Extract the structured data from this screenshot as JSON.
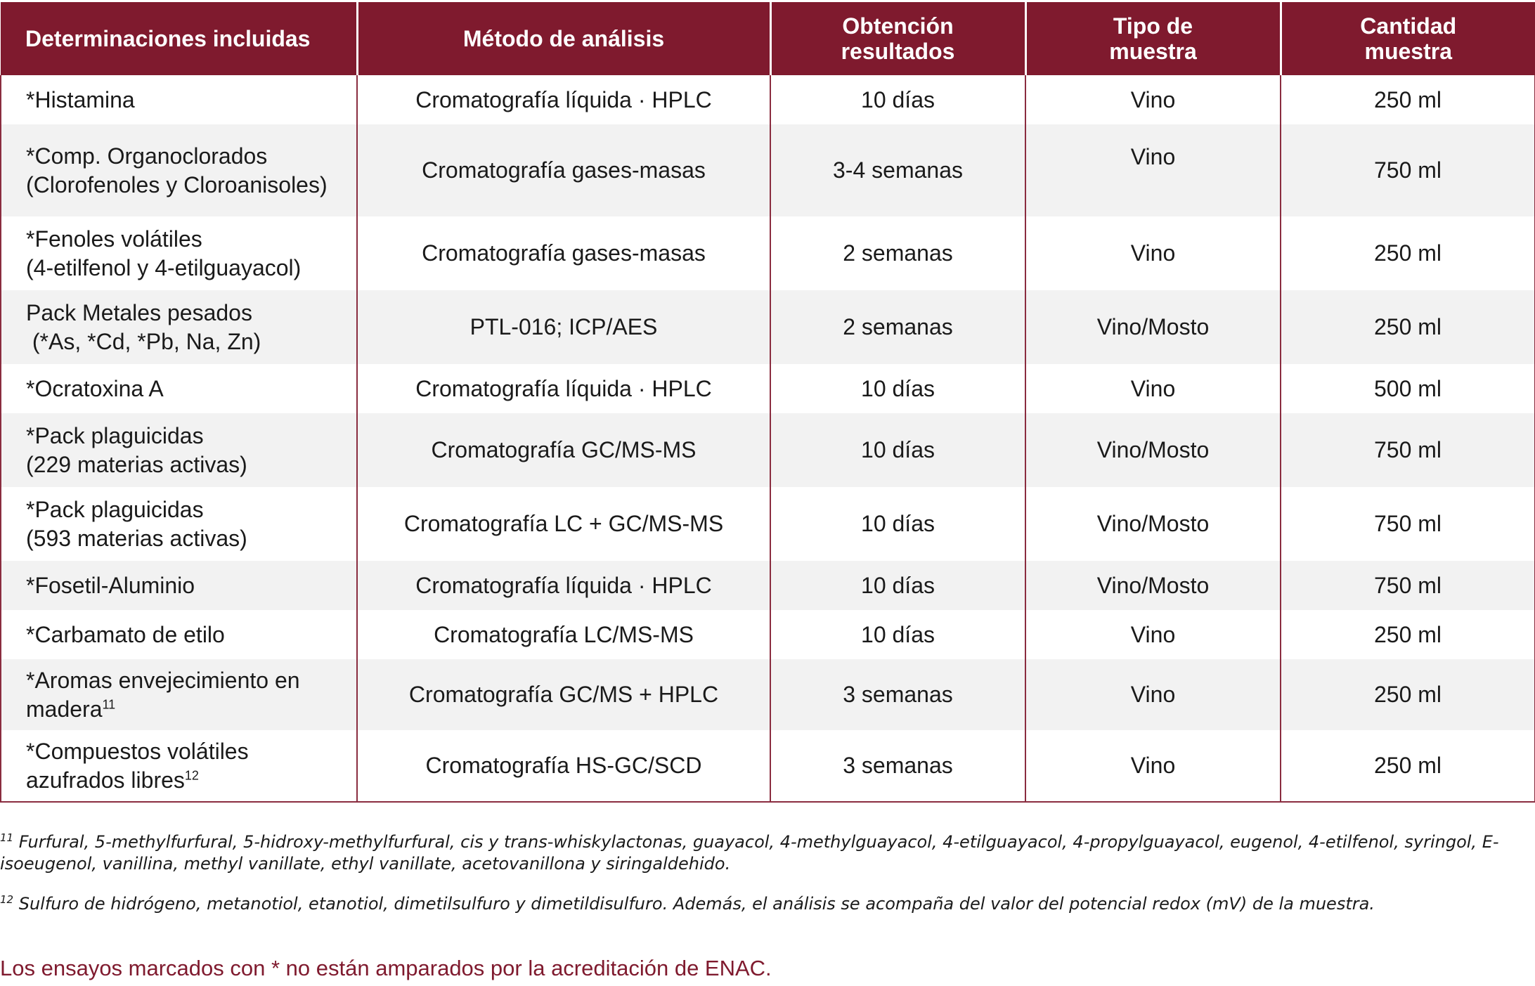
{
  "table": {
    "headers": [
      [
        "Determinaciones incluidas"
      ],
      [
        "Método de análisis"
      ],
      [
        "Obtención",
        "resultados"
      ],
      [
        "Tipo de",
        "muestra"
      ],
      [
        "Cantidad",
        "muestra"
      ]
    ],
    "rows": [
      {
        "det": [
          "*Histamina"
        ],
        "fn": "",
        "method": "Cromatografía líquida · HPLC",
        "time": "10 días",
        "type": "Vino",
        "qty": "250 ml"
      },
      {
        "det": [
          "*Comp. Organoclorados",
          "(Clorofenoles y Cloroanisoles)"
        ],
        "fn": "",
        "method": "Cromatografía gases-masas",
        "time": "3-4 semanas",
        "type": "Vino",
        "qty": "750 ml"
      },
      {
        "det": [
          "*Fenoles volátiles",
          "(4-etilfenol y 4-etilguayacol)"
        ],
        "fn": "",
        "method": "Cromatografía gases-masas",
        "time": "2 semanas",
        "type": "Vino",
        "qty": "250 ml"
      },
      {
        "det": [
          "Pack Metales pesados",
          " (*As, *Cd, *Pb, Na, Zn)"
        ],
        "fn": "",
        "method": "PTL-016; ICP/AES",
        "time": "2 semanas",
        "type": "Vino/Mosto",
        "qty": "250 ml"
      },
      {
        "det": [
          "*Ocratoxina A"
        ],
        "fn": "",
        "method": "Cromatografía líquida · HPLC",
        "time": "10 días",
        "type": "Vino",
        "qty": "500 ml"
      },
      {
        "det": [
          "*Pack plaguicidas",
          "(229 materias activas)"
        ],
        "fn": "",
        "method": "Cromatografía GC/MS-MS",
        "time": "10 días",
        "type": "Vino/Mosto",
        "qty": "750 ml"
      },
      {
        "det": [
          "*Pack plaguicidas",
          "(593 materias activas)"
        ],
        "fn": "",
        "method": "Cromatografía LC + GC/MS-MS",
        "time": "10 días",
        "type": "Vino/Mosto",
        "qty": "750 ml"
      },
      {
        "det": [
          "*Fosetil-Aluminio"
        ],
        "fn": "",
        "method": "Cromatografía líquida · HPLC",
        "time": "10 días",
        "type": "Vino/Mosto",
        "qty": "750 ml"
      },
      {
        "det": [
          "*Carbamato de etilo"
        ],
        "fn": "",
        "method": "Cromatografía LC/MS-MS",
        "time": "10 días",
        "type": "Vino",
        "qty": "250 ml"
      },
      {
        "det": [
          "*Aromas envejecimiento en",
          "madera"
        ],
        "fn": "11",
        "method": "Cromatografía GC/MS + HPLC",
        "time": "3 semanas",
        "type": "Vino",
        "qty": "250 ml"
      },
      {
        "det": [
          "*Compuestos volátiles",
          "azufrados libres"
        ],
        "fn": "12",
        "method": "Cromatografía HS-GC/SCD",
        "time": "3 semanas",
        "type": "Vino",
        "qty": "250 ml"
      }
    ]
  },
  "footnotes": [
    {
      "mark": "11",
      "text": " Furfural, 5-methylfurfural, 5-hidroxy-methylfurfural, cis y trans-whiskylactonas, guayacol, 4-methylguayacol, 4-etilguayacol, 4-propylguayacol, eugenol, 4-etilfenol, syringol, E-isoeugenol, vanillina, methyl vanillate, ethyl vanillate, acetovanillona y siringaldehido."
    },
    {
      "mark": "12",
      "text": " Sulfuro de hidrógeno, metanotiol, etanotiol, dimetilsulfuro y dimetildisulfuro. Además, el análisis se acompaña del valor del potencial redox (mV) de la muestra."
    }
  ],
  "disclaimer": "Los ensayos marcados con * no están amparados por la acreditación de ENAC."
}
